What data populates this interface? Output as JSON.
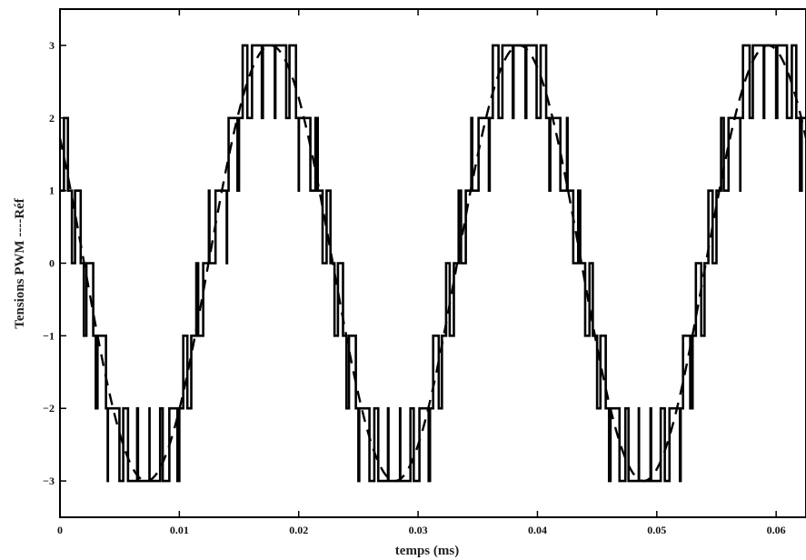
{
  "chart_data": {
    "type": "line",
    "title": "",
    "xlabel": "temps (ms)",
    "ylabel": "Tensions PWM ----Réf",
    "xlim": [
      0,
      0.0625
    ],
    "ylim": [
      -3.5,
      3.5
    ],
    "xticks": [
      0,
      0.01,
      0.02,
      0.03,
      0.04,
      0.05,
      0.06
    ],
    "xtick_labels": [
      "0",
      "0.01",
      "0.02",
      "0.03",
      "0.04",
      "0.05",
      "0.06"
    ],
    "yticks": [
      3,
      2,
      1,
      0,
      -1,
      -2,
      -3
    ],
    "ytick_labels": [
      "3",
      "2",
      "1",
      "0",
      "−1",
      "−2",
      "−3"
    ],
    "grid": false,
    "series": [
      {
        "role": "reference",
        "style": "dashed",
        "amplitude": 3,
        "frequency_hz": 48,
        "phase_deg": 145,
        "samples": 600
      },
      {
        "role": "pwm",
        "style": "solid",
        "levels": [
          -3,
          -2,
          -1,
          0,
          1,
          2,
          3
        ],
        "carrier_frequency_hz": 1000,
        "pulse_count": 65
      }
    ],
    "colors": {
      "pwm": "#000000",
      "reference": "#000000",
      "ylabel_dark": "#222222",
      "ylabel_accent": "#8b3a1a"
    }
  }
}
